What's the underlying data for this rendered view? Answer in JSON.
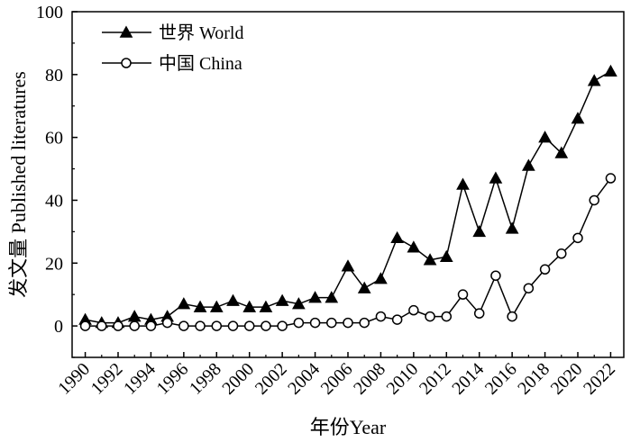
{
  "chart_data": {
    "type": "line",
    "title": "",
    "xlabel": "年份Year",
    "ylabel": "发文量 Published literatures",
    "x": [
      1990,
      1991,
      1992,
      1993,
      1994,
      1995,
      1996,
      1997,
      1998,
      1999,
      2000,
      2001,
      2002,
      2003,
      2004,
      2005,
      2006,
      2007,
      2008,
      2009,
      2010,
      2011,
      2012,
      2013,
      2014,
      2015,
      2016,
      2017,
      2018,
      2019,
      2020,
      2021,
      2022
    ],
    "xlim": [
      1989.2,
      2022.8
    ],
    "ylim": [
      -10,
      100
    ],
    "xticks": [
      "1990",
      "1992",
      "1994",
      "1996",
      "1998",
      "2000",
      "2002",
      "2004",
      "2006",
      "2008",
      "2010",
      "2012",
      "2014",
      "2016",
      "2018",
      "2020",
      "2022"
    ],
    "yticks": [
      "0",
      "20",
      "40",
      "60",
      "80",
      "100"
    ],
    "legend_position": "top-left",
    "grid": false,
    "series": [
      {
        "name": "世界 World",
        "marker": "filled-triangle",
        "color": "#000000",
        "values": [
          2,
          1,
          1,
          3,
          2,
          3,
          7,
          6,
          6,
          8,
          6,
          6,
          8,
          7,
          9,
          9,
          19,
          12,
          15,
          28,
          25,
          21,
          22,
          45,
          30,
          47,
          31,
          51,
          60,
          55,
          66,
          78,
          81
        ]
      },
      {
        "name": "中国 China",
        "marker": "open-circle",
        "color": "#000000",
        "values": [
          0,
          0,
          0,
          0,
          0,
          1,
          0,
          0,
          0,
          0,
          0,
          0,
          0,
          1,
          1,
          1,
          1,
          1,
          3,
          2,
          5,
          3,
          3,
          10,
          4,
          16,
          3,
          12,
          18,
          23,
          28,
          40,
          47
        ]
      }
    ]
  }
}
